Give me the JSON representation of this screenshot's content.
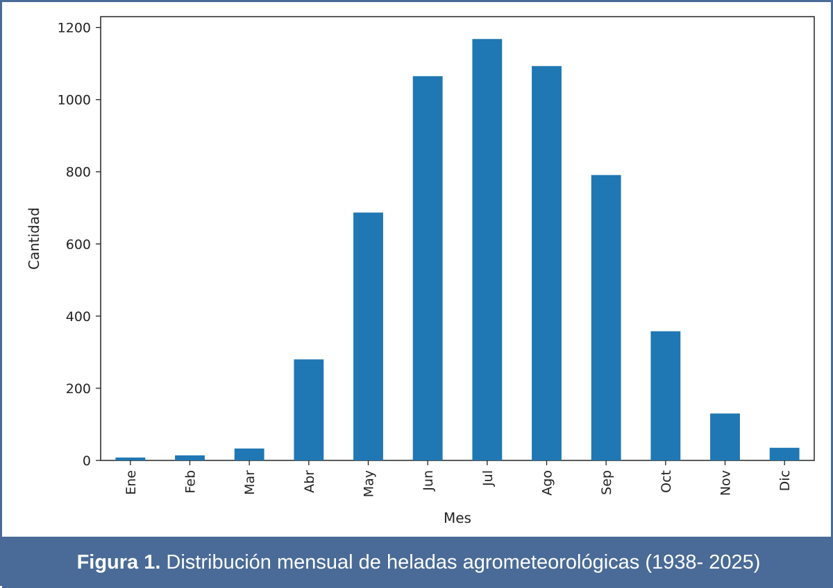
{
  "chart_data": {
    "type": "bar",
    "categories": [
      "Ene",
      "Feb",
      "Mar",
      "Abr",
      "May",
      "Jun",
      "Jul",
      "Ago",
      "Sep",
      "Oct",
      "Nov",
      "Dic"
    ],
    "values": [
      8,
      14,
      33,
      280,
      687,
      1065,
      1168,
      1093,
      791,
      358,
      130,
      35
    ],
    "xlabel": "Mes",
    "ylabel": "Cantidad",
    "ylim": [
      0,
      1230
    ],
    "yticks": [
      0,
      200,
      400,
      600,
      800,
      1000,
      1200
    ],
    "bar_color": "#1f77b4",
    "grid": false,
    "legend": "none"
  },
  "caption": {
    "label": "Figura 1.",
    "text": "Distribución mensual de heladas agrometeorológicas (1938- 2025)"
  },
  "colors": {
    "frame": "#4a6b97",
    "caption_text": "#ffffff"
  }
}
